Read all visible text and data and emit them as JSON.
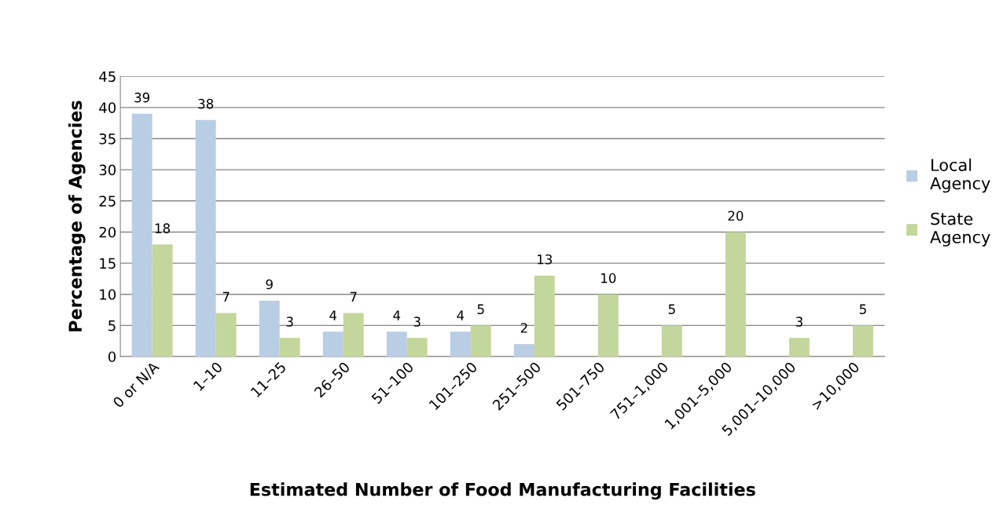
{
  "chart_data": {
    "type": "bar",
    "xlabel": "Estimated Number of Food Manufacturing Facilities",
    "ylabel": "Percentage of Agencies",
    "categories": [
      "0 or N/A",
      "1–10",
      "11–25",
      "26–50",
      "51–100",
      "101–250",
      "251–500",
      "501–750",
      "751–1,000",
      "1,001–5,000",
      "5,001–10,000",
      ">10,000"
    ],
    "series": [
      {
        "name": "Local Agency",
        "color": "#b9cde5",
        "values": [
          39,
          38,
          9,
          4,
          4,
          4,
          2,
          null,
          null,
          null,
          null,
          null
        ]
      },
      {
        "name": "State Agency",
        "color": "#c3d69b",
        "values": [
          18,
          7,
          3,
          7,
          3,
          5,
          13,
          10,
          5,
          20,
          3,
          5
        ]
      }
    ],
    "ylim": [
      0,
      45
    ],
    "yticks": [
      0,
      5,
      10,
      15,
      20,
      25,
      30,
      35,
      40,
      45
    ],
    "grid": "y",
    "legend": "right",
    "data_labels": true
  }
}
